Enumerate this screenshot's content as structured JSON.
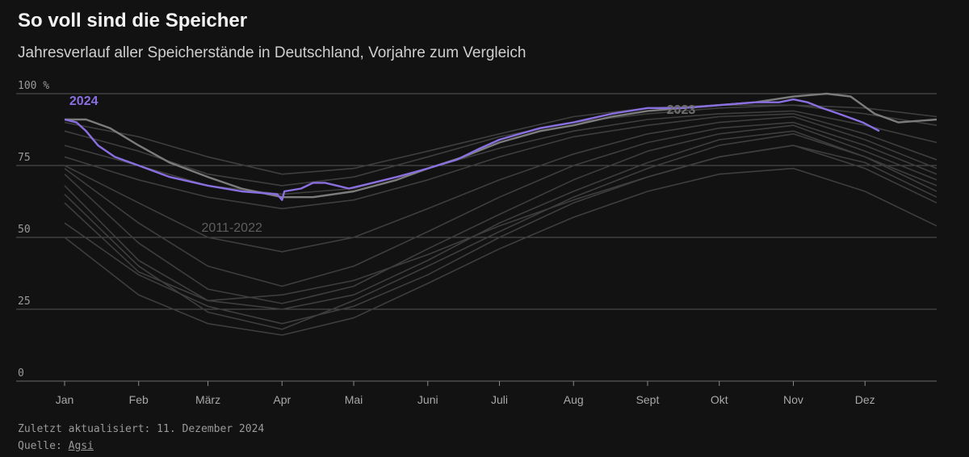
{
  "header": {
    "title": "So voll sind die Speicher",
    "subtitle": "Jahresverlauf aller Speicherstände in Deutschland, Vorjahre zum Vergleich"
  },
  "footer": {
    "updated_text": "Zuletzt aktualisiert: 11. Dezember 2024",
    "source_prefix": "Quelle: ",
    "source_link": "Agsi"
  },
  "colors": {
    "background": "#121212",
    "highlight_2024": "#8a6fe0",
    "line_2023": "#7c7c7c",
    "lines_2011_2022": "#3e3e3e",
    "grid": "#555555"
  },
  "chart_data": {
    "type": "line",
    "ylim": [
      0,
      100
    ],
    "y_unit": "%",
    "yticks": [
      0,
      25,
      50,
      75,
      100
    ],
    "ytick_labels": [
      "0",
      "25",
      "50",
      "75",
      "100 %"
    ],
    "x_domain": [
      1,
      366
    ],
    "xticks": [
      {
        "label": "Jan",
        "day": 1
      },
      {
        "label": "Feb",
        "day": 32
      },
      {
        "label": "März",
        "day": 61
      },
      {
        "label": "Apr",
        "day": 92
      },
      {
        "label": "Mai",
        "day": 122
      },
      {
        "label": "Juni",
        "day": 153
      },
      {
        "label": "Juli",
        "day": 183
      },
      {
        "label": "Aug",
        "day": 214
      },
      {
        "label": "Sept",
        "day": 245
      },
      {
        "label": "Okt",
        "day": 275
      },
      {
        "label": "Nov",
        "day": 306
      },
      {
        "label": "Dez",
        "day": 336
      }
    ],
    "series": [
      {
        "name": "2011-2022",
        "label_text": "2011-2022",
        "role": "background",
        "lines": [
          [
            [
              1,
              90
            ],
            [
              32,
              85
            ],
            [
              61,
              78
            ],
            [
              92,
              72
            ],
            [
              122,
              74
            ],
            [
              153,
              80
            ],
            [
              183,
              86
            ],
            [
              214,
              92
            ],
            [
              245,
              95
            ],
            [
              275,
              96
            ],
            [
              306,
              96
            ],
            [
              336,
              95
            ],
            [
              366,
              92
            ]
          ],
          [
            [
              1,
              87
            ],
            [
              32,
              80
            ],
            [
              61,
              72
            ],
            [
              92,
              68
            ],
            [
              122,
              71
            ],
            [
              153,
              78
            ],
            [
              183,
              85
            ],
            [
              214,
              90
            ],
            [
              245,
              93
            ],
            [
              275,
              95
            ],
            [
              306,
              96
            ],
            [
              336,
              93
            ],
            [
              366,
              89
            ]
          ],
          [
            [
              1,
              82
            ],
            [
              32,
              75
            ],
            [
              61,
              68
            ],
            [
              92,
              65
            ],
            [
              122,
              67
            ],
            [
              153,
              74
            ],
            [
              183,
              81
            ],
            [
              214,
              87
            ],
            [
              245,
              91
            ],
            [
              275,
              93
            ],
            [
              306,
              94
            ],
            [
              336,
              89
            ],
            [
              366,
              83
            ]
          ],
          [
            [
              1,
              78
            ],
            [
              32,
              70
            ],
            [
              61,
              64
            ],
            [
              92,
              60
            ],
            [
              122,
              63
            ],
            [
              153,
              70
            ],
            [
              183,
              78
            ],
            [
              214,
              85
            ],
            [
              245,
              89
            ],
            [
              275,
              92
            ],
            [
              306,
              93
            ],
            [
              336,
              86
            ],
            [
              366,
              77
            ]
          ],
          [
            [
              1,
              75
            ],
            [
              32,
              62
            ],
            [
              61,
              50
            ],
            [
              92,
              45
            ],
            [
              122,
              50
            ],
            [
              153,
              60
            ],
            [
              183,
              70
            ],
            [
              214,
              79
            ],
            [
              245,
              86
            ],
            [
              275,
              90
            ],
            [
              306,
              92
            ],
            [
              336,
              84
            ],
            [
              366,
              74
            ]
          ],
          [
            [
              1,
              74
            ],
            [
              32,
              55
            ],
            [
              61,
              40
            ],
            [
              92,
              33
            ],
            [
              122,
              40
            ],
            [
              153,
              52
            ],
            [
              183,
              64
            ],
            [
              214,
              75
            ],
            [
              245,
              83
            ],
            [
              275,
              88
            ],
            [
              306,
              90
            ],
            [
              336,
              82
            ],
            [
              366,
              72
            ]
          ],
          [
            [
              1,
              72
            ],
            [
              32,
              48
            ],
            [
              61,
              32
            ],
            [
              92,
              27
            ],
            [
              122,
              33
            ],
            [
              153,
              46
            ],
            [
              183,
              58
            ],
            [
              214,
              70
            ],
            [
              245,
              80
            ],
            [
              275,
              86
            ],
            [
              306,
              89
            ],
            [
              336,
              80
            ],
            [
              366,
              70
            ]
          ],
          [
            [
              1,
              68
            ],
            [
              32,
              42
            ],
            [
              61,
              28
            ],
            [
              92,
              25
            ],
            [
              122,
              30
            ],
            [
              153,
              42
            ],
            [
              183,
              55
            ],
            [
              214,
              66
            ],
            [
              245,
              76
            ],
            [
              275,
              84
            ],
            [
              306,
              87
            ],
            [
              336,
              78
            ],
            [
              366,
              66
            ]
          ],
          [
            [
              1,
              62
            ],
            [
              32,
              38
            ],
            [
              61,
              28
            ],
            [
              92,
              30
            ],
            [
              122,
              35
            ],
            [
              153,
              44
            ],
            [
              183,
              54
            ],
            [
              214,
              63
            ],
            [
              245,
              71
            ],
            [
              275,
              78
            ],
            [
              306,
              82
            ],
            [
              336,
              74
            ],
            [
              366,
              62
            ]
          ],
          [
            [
              1,
              55
            ],
            [
              32,
              37
            ],
            [
              61,
              26
            ],
            [
              92,
              20
            ],
            [
              122,
              26
            ],
            [
              153,
              37
            ],
            [
              183,
              50
            ],
            [
              214,
              62
            ],
            [
              245,
              71
            ],
            [
              275,
              78
            ],
            [
              306,
              82
            ],
            [
              336,
              76
            ],
            [
              366,
              64
            ]
          ],
          [
            [
              1,
              50
            ],
            [
              32,
              30
            ],
            [
              61,
              20
            ],
            [
              92,
              16
            ],
            [
              122,
              22
            ],
            [
              153,
              34
            ],
            [
              183,
              46
            ],
            [
              214,
              57
            ],
            [
              245,
              66
            ],
            [
              275,
              72
            ],
            [
              306,
              74
            ],
            [
              336,
              66
            ],
            [
              366,
              54
            ]
          ],
          [
            [
              1,
              65
            ],
            [
              32,
              40
            ],
            [
              61,
              24
            ],
            [
              92,
              18
            ],
            [
              122,
              28
            ],
            [
              153,
              40
            ],
            [
              183,
              52
            ],
            [
              214,
              64
            ],
            [
              245,
              74
            ],
            [
              275,
              82
            ],
            [
              306,
              86
            ],
            [
              336,
              78
            ],
            [
              366,
              68
            ]
          ]
        ]
      },
      {
        "name": "2023",
        "label_text": "2023",
        "role": "comparison",
        "points": [
          [
            1,
            91
          ],
          [
            10,
            91
          ],
          [
            20,
            88
          ],
          [
            32,
            82
          ],
          [
            45,
            76
          ],
          [
            61,
            71
          ],
          [
            75,
            67
          ],
          [
            92,
            64
          ],
          [
            105,
            64
          ],
          [
            122,
            66
          ],
          [
            140,
            70
          ],
          [
            153,
            74
          ],
          [
            168,
            78
          ],
          [
            183,
            83
          ],
          [
            200,
            87
          ],
          [
            214,
            89
          ],
          [
            230,
            92
          ],
          [
            245,
            94
          ],
          [
            260,
            95
          ],
          [
            275,
            96
          ],
          [
            290,
            97
          ],
          [
            306,
            99
          ],
          [
            320,
            100
          ],
          [
            330,
            99
          ],
          [
            340,
            93
          ],
          [
            350,
            90
          ],
          [
            366,
            91
          ]
        ]
      },
      {
        "name": "2024",
        "label_text": "2024",
        "role": "highlight",
        "points": [
          [
            1,
            91
          ],
          [
            6,
            90
          ],
          [
            10,
            87
          ],
          [
            15,
            82
          ],
          [
            22,
            78
          ],
          [
            32,
            75
          ],
          [
            45,
            71
          ],
          [
            61,
            68
          ],
          [
            75,
            66
          ],
          [
            90,
            65
          ],
          [
            92,
            63
          ],
          [
            93,
            66
          ],
          [
            100,
            67
          ],
          [
            105,
            69
          ],
          [
            110,
            69
          ],
          [
            115,
            68
          ],
          [
            120,
            67
          ],
          [
            130,
            69
          ],
          [
            140,
            71
          ],
          [
            153,
            74
          ],
          [
            165,
            77
          ],
          [
            175,
            81
          ],
          [
            183,
            84
          ],
          [
            200,
            88
          ],
          [
            214,
            90
          ],
          [
            230,
            93
          ],
          [
            245,
            95
          ],
          [
            260,
            95
          ],
          [
            275,
            96
          ],
          [
            290,
            97
          ],
          [
            300,
            97
          ],
          [
            306,
            98
          ],
          [
            312,
            97
          ],
          [
            318,
            95
          ],
          [
            325,
            93
          ],
          [
            335,
            90
          ],
          [
            342,
            87
          ]
        ]
      }
    ]
  }
}
